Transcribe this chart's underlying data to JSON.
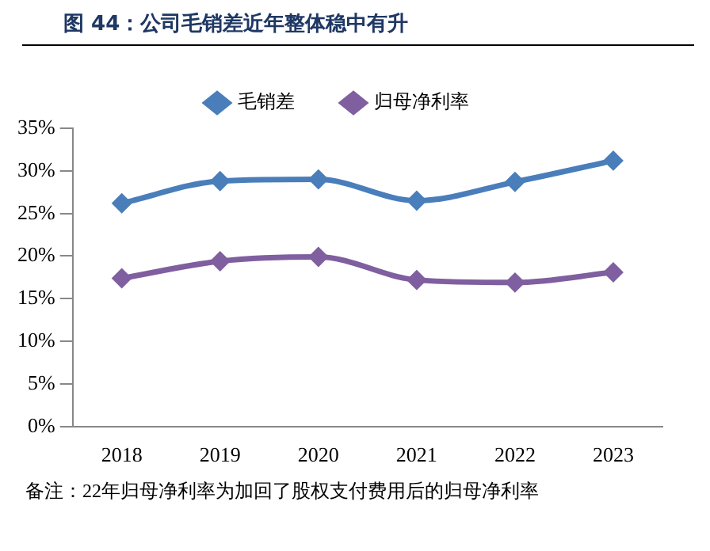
{
  "chart_data": {
    "type": "line",
    "title": "图 44：公司毛销差近年整体稳中有升",
    "categories": [
      "2018",
      "2019",
      "2020",
      "2021",
      "2022",
      "2023"
    ],
    "series": [
      {
        "name": "毛销差",
        "color": "#4a7ebb",
        "values": [
          26.2,
          28.8,
          29.0,
          26.5,
          28.7,
          31.2
        ]
      },
      {
        "name": "归母净利率",
        "color": "#7f5f9f",
        "values": [
          17.4,
          19.4,
          19.9,
          17.2,
          16.9,
          18.1
        ]
      }
    ],
    "ylim": [
      0,
      35
    ],
    "yticks": [
      {
        "value": 0,
        "label": "0%"
      },
      {
        "value": 5,
        "label": "5%"
      },
      {
        "value": 10,
        "label": "10%"
      },
      {
        "value": 15,
        "label": "15%"
      },
      {
        "value": 20,
        "label": "20%"
      },
      {
        "value": 25,
        "label": "25%"
      },
      {
        "value": 30,
        "label": "30%"
      },
      {
        "value": 35,
        "label": "35%"
      }
    ],
    "grid": false,
    "legend": "top",
    "marker": "diamond",
    "annotations": [
      "备注：22年归母净利率为加回了股权支付费用后的归母净利率"
    ]
  }
}
